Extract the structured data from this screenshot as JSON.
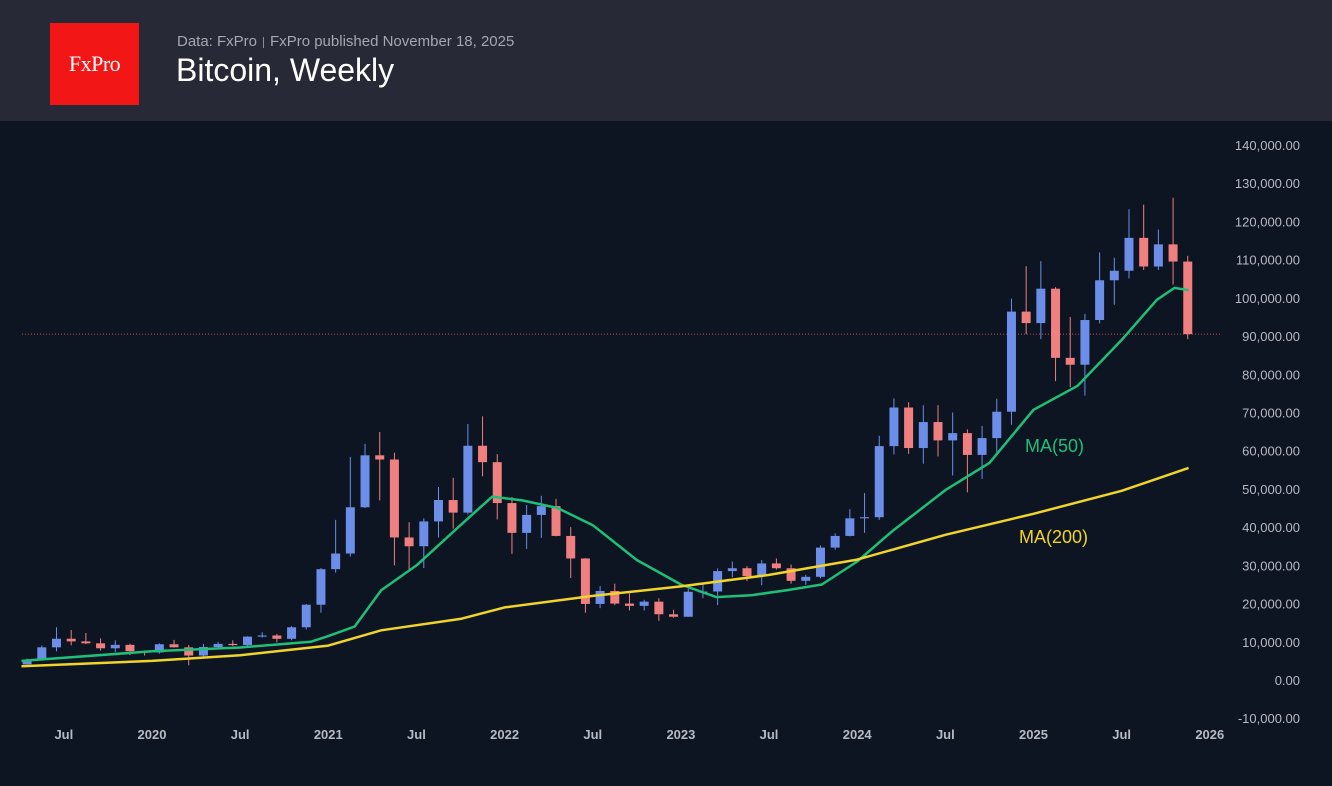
{
  "header": {
    "logo_text": "FxPro",
    "data_source": "Data: FxPro",
    "published": "FxPro published November 18, 2025",
    "title": "Bitcoin, Weekly"
  },
  "colors": {
    "background": "#0d1422",
    "header": "#272a36",
    "logo": "#f31616",
    "up": "#6c8ee8",
    "down": "#f07f7f",
    "ma50": "#1fbf78",
    "ma200": "#f0d42a",
    "last_price_line": "#c0504d"
  },
  "chart_data": {
    "type": "candlestick",
    "title": "Bitcoin, Weekly",
    "ylim": [
      -10000,
      140000
    ],
    "grid": false,
    "y_ticks": [
      "140,000.00",
      "130,000.00",
      "120,000.00",
      "110,000.00",
      "100,000.00",
      "90,000.00",
      "80,000.00",
      "70,000.00",
      "60,000.00",
      "50,000.00",
      "40,000.00",
      "30,000.00",
      "20,000.00",
      "10,000.00",
      "0.00",
      "-10,000.00"
    ],
    "y_tick_values": [
      140000,
      130000,
      120000,
      110000,
      100000,
      90000,
      80000,
      70000,
      60000,
      50000,
      40000,
      30000,
      20000,
      10000,
      0,
      -10000
    ],
    "x_ticks": [
      {
        "label": "Jul",
        "t": 2019.5
      },
      {
        "label": "2020",
        "t": 2020
      },
      {
        "label": "Jul",
        "t": 2020.5
      },
      {
        "label": "2021",
        "t": 2021
      },
      {
        "label": "Jul",
        "t": 2021.5
      },
      {
        "label": "2022",
        "t": 2022
      },
      {
        "label": "Jul",
        "t": 2022.5
      },
      {
        "label": "2023",
        "t": 2023
      },
      {
        "label": "Jul",
        "t": 2023.5
      },
      {
        "label": "2024",
        "t": 2024
      },
      {
        "label": "Jul",
        "t": 2024.5
      },
      {
        "label": "2025",
        "t": 2025
      },
      {
        "label": "Jul",
        "t": 2025.5
      },
      {
        "label": "2026",
        "t": 2026
      }
    ],
    "last_price": 90500,
    "start": "2019-04",
    "ohlc": [
      [
        4100,
        5600,
        4100,
        5350
      ],
      [
        5350,
        9000,
        5350,
        8550
      ],
      [
        8550,
        13800,
        7500,
        10800
      ],
      [
        10800,
        13100,
        9100,
        10100
      ],
      [
        10100,
        12300,
        9400,
        9600
      ],
      [
        9600,
        10900,
        7700,
        8300
      ],
      [
        8300,
        10400,
        7300,
        9200
      ],
      [
        9200,
        9500,
        6500,
        7550
      ],
      [
        7550,
        7750,
        6400,
        7200
      ],
      [
        7200,
        9600,
        6900,
        9350
      ],
      [
        9350,
        10500,
        8500,
        8550
      ],
      [
        8550,
        9200,
        3850,
        6400
      ],
      [
        6400,
        9450,
        6150,
        8630
      ],
      [
        8630,
        10000,
        8100,
        9450
      ],
      [
        9450,
        10400,
        8900,
        9140
      ],
      [
        9140,
        11450,
        8950,
        11350
      ],
      [
        11350,
        12500,
        11100,
        11650
      ],
      [
        11650,
        12050,
        9850,
        10780
      ],
      [
        10780,
        14100,
        10400,
        13800
      ],
      [
        13800,
        19900,
        13200,
        19700
      ],
      [
        19700,
        29300,
        17600,
        29000
      ],
      [
        29000,
        41900,
        28100,
        33100
      ],
      [
        33100,
        58400,
        32300,
        45200
      ],
      [
        45200,
        61800,
        45000,
        58800
      ],
      [
        58800,
        64900,
        47000,
        57700
      ],
      [
        57700,
        59500,
        30000,
        37300
      ],
      [
        37300,
        41300,
        28800,
        35000
      ],
      [
        35000,
        42300,
        29300,
        41500
      ],
      [
        41500,
        50500,
        37300,
        47100
      ],
      [
        47100,
        52900,
        39600,
        43800
      ],
      [
        43800,
        67000,
        43300,
        61300
      ],
      [
        61300,
        69000,
        53300,
        57000
      ],
      [
        57000,
        59100,
        42000,
        46300
      ],
      [
        46300,
        47900,
        33000,
        38500
      ],
      [
        38500,
        45800,
        34300,
        43200
      ],
      [
        43200,
        48200,
        37200,
        45500
      ],
      [
        45500,
        47400,
        37600,
        37700
      ],
      [
        37700,
        40000,
        26700,
        31800
      ],
      [
        31800,
        31900,
        17600,
        19900
      ],
      [
        19900,
        24600,
        18800,
        23300
      ],
      [
        23300,
        25200,
        19600,
        20000
      ],
      [
        20000,
        22700,
        18200,
        19400
      ],
      [
        19400,
        21000,
        18200,
        20500
      ],
      [
        20500,
        21400,
        15500,
        17200
      ],
      [
        17200,
        18400,
        16300,
        16550
      ],
      [
        16550,
        23900,
        16500,
        23100
      ],
      [
        23100,
        25200,
        21400,
        23150
      ],
      [
        23150,
        29200,
        19600,
        28500
      ],
      [
        28500,
        31000,
        26900,
        29250
      ],
      [
        29250,
        29800,
        25900,
        27200
      ],
      [
        27200,
        31400,
        24800,
        30500
      ],
      [
        30500,
        31800,
        28900,
        29250
      ],
      [
        29250,
        30200,
        25200,
        25950
      ],
      [
        25950,
        27500,
        24900,
        27000
      ],
      [
        27000,
        35200,
        26600,
        34650
      ],
      [
        34650,
        38400,
        34100,
        37700
      ],
      [
        37700,
        44700,
        37600,
        42300
      ],
      [
        42300,
        48900,
        38500,
        42600
      ],
      [
        42600,
        63900,
        41900,
        61200
      ],
      [
        61200,
        73700,
        59000,
        71300
      ],
      [
        71300,
        72700,
        59200,
        60700
      ],
      [
        60700,
        71900,
        56600,
        67500
      ],
      [
        67500,
        71900,
        58500,
        62700
      ],
      [
        62700,
        70000,
        53500,
        64600
      ],
      [
        64600,
        65600,
        49100,
        58900
      ],
      [
        58900,
        66500,
        52600,
        63300
      ],
      [
        63300,
        73600,
        58900,
        70200
      ],
      [
        70200,
        99800,
        66800,
        96400
      ],
      [
        96400,
        108300,
        90500,
        93400
      ],
      [
        93400,
        109600,
        89200,
        102400
      ],
      [
        102400,
        102800,
        78200,
        84300
      ],
      [
        84300,
        95000,
        76600,
        82500
      ],
      [
        82500,
        95800,
        74400,
        94200
      ],
      [
        94200,
        111900,
        93300,
        104600
      ],
      [
        104600,
        110500,
        98200,
        107100
      ],
      [
        107100,
        123200,
        105100,
        115700
      ],
      [
        115700,
        124400,
        107300,
        108200
      ],
      [
        108200,
        117900,
        107300,
        114000
      ],
      [
        114000,
        126200,
        103500,
        109500
      ],
      [
        109500,
        111000,
        89200,
        90500
      ]
    ],
    "series": [
      {
        "name": "MA(50)",
        "points": [
          [
            2019.26,
            5000
          ],
          [
            2020.0,
            7500
          ],
          [
            2020.5,
            8500
          ],
          [
            2020.9,
            10000
          ],
          [
            2021.0,
            11500
          ],
          [
            2021.15,
            14000
          ],
          [
            2021.3,
            23500
          ],
          [
            2021.5,
            30000
          ],
          [
            2021.75,
            40500
          ],
          [
            2021.93,
            48000
          ],
          [
            2022.1,
            47000
          ],
          [
            2022.3,
            45000
          ],
          [
            2022.5,
            40500
          ],
          [
            2022.75,
            31400
          ],
          [
            2023.0,
            25000
          ],
          [
            2023.2,
            21700
          ],
          [
            2023.4,
            22200
          ],
          [
            2023.6,
            23500
          ],
          [
            2023.8,
            25000
          ],
          [
            2024.0,
            31000
          ],
          [
            2024.2,
            39000
          ],
          [
            2024.5,
            49700
          ],
          [
            2024.75,
            56800
          ],
          [
            2025.0,
            70700
          ],
          [
            2025.25,
            77000
          ],
          [
            2025.5,
            89000
          ],
          [
            2025.7,
            99500
          ],
          [
            2025.8,
            102600
          ],
          [
            2025.88,
            102000
          ]
        ]
      },
      {
        "name": "MA(200)",
        "points": [
          [
            2019.26,
            3600
          ],
          [
            2020.0,
            5000
          ],
          [
            2020.5,
            6500
          ],
          [
            2021.0,
            9000
          ],
          [
            2021.3,
            13000
          ],
          [
            2021.75,
            16000
          ],
          [
            2022.0,
            19000
          ],
          [
            2022.5,
            22000
          ],
          [
            2023.0,
            24500
          ],
          [
            2023.5,
            27500
          ],
          [
            2024.0,
            31500
          ],
          [
            2024.5,
            38000
          ],
          [
            2025.0,
            43500
          ],
          [
            2025.5,
            49500
          ],
          [
            2025.88,
            55500
          ]
        ]
      }
    ]
  }
}
